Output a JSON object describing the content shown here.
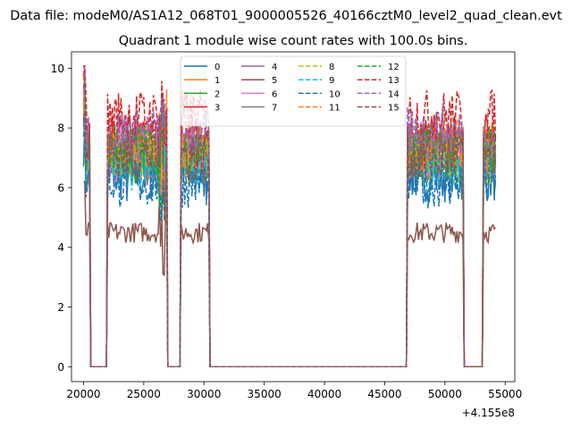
{
  "chart_data": {
    "type": "line",
    "suptitle": "Data file: modeM0/AS1A12_068T01_9000005526_40166cztM0_level2_quad_clean.evt",
    "title": "Quadrant 1 module wise count rates with 100.0s bins.",
    "xlabel": "",
    "ylabel": "",
    "x_offset_label": "+4.155e8",
    "xlim": [
      19000,
      55800
    ],
    "ylim": [
      -0.5,
      10.55
    ],
    "x_ticks": [
      20000,
      25000,
      30000,
      35000,
      40000,
      45000,
      50000,
      55000
    ],
    "x_tick_labels": [
      "20000",
      "25000",
      "30000",
      "35000",
      "40000",
      "45000",
      "50000",
      "55000"
    ],
    "y_ticks": [
      0,
      2,
      4,
      6,
      8,
      10
    ],
    "y_tick_labels": [
      "0",
      "2",
      "4",
      "6",
      "8",
      "10"
    ],
    "legend_position": "top-center",
    "legend_columns": 4,
    "active_windows": [
      [
        20000,
        20550
      ],
      [
        21980,
        26980
      ],
      [
        28100,
        30420
      ],
      [
        46900,
        51520
      ],
      [
        53200,
        54200
      ]
    ],
    "series": [
      {
        "name": "0",
        "color": "#1f77b4",
        "dash": "solid",
        "level": 6.4
      },
      {
        "name": "1",
        "color": "#ff7f0e",
        "dash": "solid",
        "level": 7.2
      },
      {
        "name": "2",
        "color": "#2ca02c",
        "dash": "solid",
        "level": 7.0
      },
      {
        "name": "3",
        "color": "#d62728",
        "dash": "solid",
        "level": 7.6
      },
      {
        "name": "4",
        "color": "#9467bd",
        "dash": "solid",
        "level": 7.3
      },
      {
        "name": "5",
        "color": "#8c564b",
        "dash": "solid",
        "level": 4.5
      },
      {
        "name": "6",
        "color": "#e377c2",
        "dash": "solid",
        "level": 7.1
      },
      {
        "name": "7",
        "color": "#7f7f7f",
        "dash": "solid",
        "level": 6.9
      },
      {
        "name": "8",
        "color": "#bcbd22",
        "dash": "dashed",
        "level": 7.0
      },
      {
        "name": "9",
        "color": "#17becf",
        "dash": "dashed",
        "level": 6.8
      },
      {
        "name": "10",
        "color": "#1f77b4",
        "dash": "dashed",
        "level": 6.2
      },
      {
        "name": "11",
        "color": "#ff7f0e",
        "dash": "dashed",
        "level": 7.4
      },
      {
        "name": "12",
        "color": "#2ca02c",
        "dash": "dashed",
        "level": 7.3
      },
      {
        "name": "13",
        "color": "#d62728",
        "dash": "dashed",
        "level": 8.4
      },
      {
        "name": "14",
        "color": "#9467bd",
        "dash": "dashed",
        "level": 7.8
      },
      {
        "name": "15",
        "color": "#8c564b",
        "dash": "dashed",
        "level": 7.1
      }
    ]
  }
}
